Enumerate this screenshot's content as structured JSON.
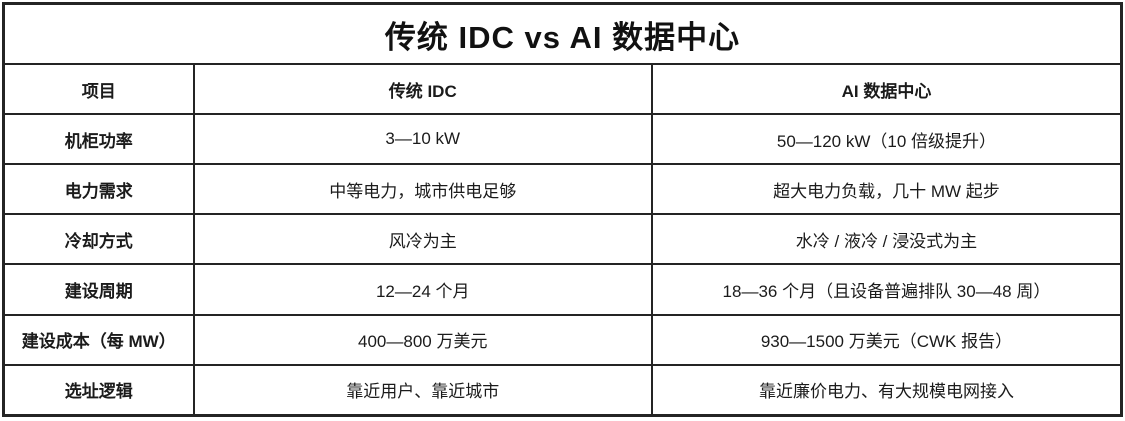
{
  "title": "传统 IDC vs AI 数据中心",
  "table": {
    "columns": [
      "项目",
      "传统 IDC",
      "AI 数据中心"
    ],
    "rows": [
      {
        "label": "机柜功率",
        "traditional": "3—10 kW",
        "ai": "50—120 kW（10 倍级提升）"
      },
      {
        "label": "电力需求",
        "traditional": "中等电力，城市供电足够",
        "ai": "超大电力负载，几十 MW 起步"
      },
      {
        "label": "冷却方式",
        "traditional": "风冷为主",
        "ai": "水冷 / 液冷 / 浸没式为主"
      },
      {
        "label": "建设周期",
        "traditional": "12—24 个月",
        "ai": "18—36 个月（且设备普遍排队 30—48 周）"
      },
      {
        "label": "建设成本（每 MW）",
        "traditional": "400—800 万美元",
        "ai": "930—1500 万美元（CWK 报告）"
      },
      {
        "label": "选址逻辑",
        "traditional": "靠近用户、靠近城市",
        "ai": "靠近廉价电力、有大规模电网接入"
      }
    ]
  },
  "colors": {
    "border": "#242424",
    "text": "#1b1b1b",
    "background": "#ffffff"
  }
}
